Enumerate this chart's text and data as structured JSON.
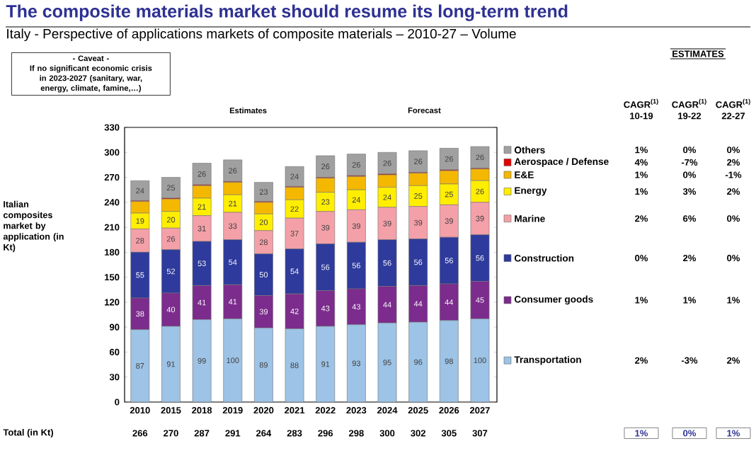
{
  "chart_data": {
    "type": "bar",
    "stacked": true,
    "title": "The composite materials market should resume its long-term trend",
    "subtitle": "Italy - Perspective of applications markets of composite materials – 2010-27 – Volume",
    "ylabel": "Italian composites market by application (in Kt)",
    "categories": [
      "2010",
      "2015",
      "2018",
      "2019",
      "2020",
      "2021",
      "2022",
      "2023",
      "2024",
      "2025",
      "2026",
      "2027"
    ],
    "series": [
      {
        "name": "Transportation",
        "color": "#9dc3e6",
        "values": [
          87,
          91,
          99,
          100,
          89,
          88,
          91,
          93,
          95,
          96,
          98,
          100
        ],
        "value_labels": [
          "87",
          "91",
          "99",
          "100",
          "89",
          "88",
          "91",
          "93",
          "95",
          "96",
          "98",
          "100"
        ]
      },
      {
        "name": "Consumer goods",
        "color": "#7b2c8c",
        "values": [
          38,
          40,
          41,
          41,
          39,
          42,
          43,
          43,
          44,
          44,
          44,
          45
        ],
        "value_labels": [
          "38",
          "40",
          "41",
          "41",
          "39",
          "42",
          "43",
          "43",
          "44",
          "44",
          "44",
          "45"
        ]
      },
      {
        "name": "Construction",
        "color": "#2e3a9c",
        "values": [
          55,
          52,
          53,
          54,
          50,
          54,
          56,
          56,
          56,
          56,
          56,
          56
        ],
        "value_labels": [
          "55",
          "52",
          "53",
          "54",
          "50",
          "54",
          "56",
          "56",
          "56",
          "56",
          "56",
          "56"
        ]
      },
      {
        "name": "Marine",
        "color": "#f4a0a8",
        "values": [
          28,
          26,
          31,
          33,
          28,
          37,
          39,
          39,
          39,
          39,
          39,
          39
        ],
        "value_labels": [
          "28",
          "26",
          "31",
          "33",
          "28",
          "37",
          "39",
          "39",
          "39",
          "39",
          "39",
          "39"
        ]
      },
      {
        "name": "Energy",
        "color": "#ffee00",
        "values": [
          19,
          20,
          21,
          21,
          20,
          22,
          23,
          24,
          24,
          25,
          25,
          26
        ],
        "value_labels": [
          "19",
          "20",
          "21",
          "21",
          "20",
          "22",
          "23",
          "24",
          "24",
          "25",
          "25",
          "26"
        ]
      },
      {
        "name": "E&E",
        "color": "#f5b800",
        "values": [
          14,
          15,
          15,
          15,
          14,
          15,
          17,
          16,
          15,
          15,
          16,
          14
        ]
      },
      {
        "name": "Aerospace / Defense",
        "color": "#e00000",
        "values": [
          1,
          1,
          1,
          1,
          1,
          1,
          1,
          1,
          1,
          1,
          1,
          1
        ]
      },
      {
        "name": "Others",
        "color": "#a0a0a0",
        "values": [
          24,
          25,
          26,
          26,
          23,
          24,
          26,
          26,
          26,
          26,
          26,
          26
        ],
        "value_labels": [
          "24",
          "25",
          "26",
          "26",
          "23",
          "24",
          "26",
          "26",
          "26",
          "26",
          "26",
          "26"
        ]
      }
    ],
    "totals": [
      "266",
      "270",
      "287",
      "291",
      "264",
      "283",
      "296",
      "298",
      "300",
      "302",
      "305",
      "307"
    ],
    "ylim": [
      0,
      330
    ],
    "yticks": [
      0,
      30,
      60,
      90,
      120,
      150,
      180,
      210,
      240,
      270,
      300,
      330
    ],
    "legend": "right",
    "annotations": [
      "- Caveat -",
      "If no significant economic crisis in 2023-2027 (sanitary, war, energy, climate, famine,…)",
      "Estimates",
      "Forecast",
      "ESTIMATES",
      "CAGR$^{(1)}$ 10-19",
      "CAGR$^{(1)}$ 19-22",
      "CAGR$^{(1)}$ 22-27",
      "2%",
      "-3%",
      "2%",
      "1%",
      "1%",
      "1%",
      "0%",
      "2%",
      "0%",
      "2%",
      "6%",
      "0%",
      "1%",
      "3%",
      "2%",
      "1%",
      "0%",
      "-1%",
      "4%",
      "-7%",
      "2%",
      "1%",
      "0%",
      "0%",
      "1%",
      "0%",
      "1%",
      "Total (in Kt)"
    ]
  }
}
